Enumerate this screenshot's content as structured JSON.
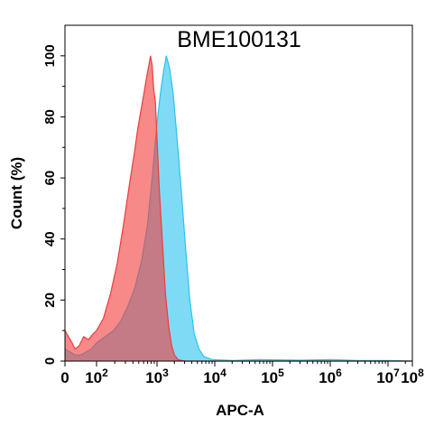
{
  "chart_data": {
    "type": "area",
    "title": "BME100131",
    "xlabel": "APC-A",
    "ylabel": "Count  (%)",
    "x_scale": "biexponential",
    "xlim": [
      0,
      100000000
    ],
    "ylim": [
      0,
      110
    ],
    "x_ticks": [
      {
        "value": 0,
        "base": "0",
        "exp": ""
      },
      {
        "value": 100,
        "base": "10",
        "exp": "2"
      },
      {
        "value": 1000,
        "base": "10",
        "exp": "3"
      },
      {
        "value": 10000,
        "base": "10",
        "exp": "4"
      },
      {
        "value": 100000,
        "base": "10",
        "exp": "5"
      },
      {
        "value": 1000000,
        "base": "10",
        "exp": "6"
      },
      {
        "value": 10000000,
        "base": "10",
        "exp": "7"
      },
      {
        "value": 100000000,
        "base": "10",
        "exp": "8"
      }
    ],
    "y_ticks": [
      "0",
      "20",
      "40",
      "60",
      "80",
      "100"
    ],
    "grid": false,
    "series": [
      {
        "color": "#29c3ee",
        "fill": "rgba(41,195,238,0.6)",
        "points": [
          [
            0,
            4
          ],
          [
            10,
            2
          ],
          [
            25,
            2
          ],
          [
            45,
            3
          ],
          [
            70,
            4
          ],
          [
            100,
            6
          ],
          [
            140,
            8
          ],
          [
            190,
            10
          ],
          [
            250,
            13
          ],
          [
            330,
            18
          ],
          [
            430,
            24
          ],
          [
            560,
            33
          ],
          [
            700,
            45
          ],
          [
            850,
            62
          ],
          [
            1000,
            78
          ],
          [
            1150,
            88
          ],
          [
            1300,
            95
          ],
          [
            1450,
            100
          ],
          [
            1650,
            96
          ],
          [
            1900,
            88
          ],
          [
            2200,
            74
          ],
          [
            2600,
            57
          ],
          [
            3100,
            38
          ],
          [
            3700,
            20
          ],
          [
            4400,
            9
          ],
          [
            5300,
            4
          ],
          [
            6500,
            1.5
          ],
          [
            9000,
            0.5
          ],
          [
            20000,
            0.2
          ],
          [
            60000,
            0.5
          ],
          [
            300000,
            0.3
          ],
          [
            1000000,
            0.5
          ],
          [
            3000000,
            0.2
          ],
          [
            10000000,
            0.2
          ],
          [
            100000000,
            0
          ]
        ]
      },
      {
        "color": "#f03c3c",
        "fill": "rgba(242,58,58,0.6)",
        "points": [
          [
            0,
            10
          ],
          [
            5,
            6
          ],
          [
            10,
            4
          ],
          [
            20,
            5
          ],
          [
            35,
            8
          ],
          [
            55,
            7
          ],
          [
            80,
            9
          ],
          [
            100,
            10
          ],
          [
            130,
            14
          ],
          [
            170,
            22
          ],
          [
            220,
            32
          ],
          [
            280,
            45
          ],
          [
            350,
            58
          ],
          [
            420,
            68
          ],
          [
            480,
            76
          ],
          [
            540,
            82
          ],
          [
            600,
            87
          ],
          [
            660,
            92
          ],
          [
            720,
            96
          ],
          [
            780,
            100
          ],
          [
            830,
            97
          ],
          [
            880,
            89
          ],
          [
            940,
            85
          ],
          [
            1000,
            73
          ],
          [
            1100,
            56
          ],
          [
            1250,
            38
          ],
          [
            1400,
            22
          ],
          [
            1600,
            11
          ],
          [
            1800,
            5
          ],
          [
            2000,
            2
          ],
          [
            2300,
            0.5
          ],
          [
            3000,
            0
          ],
          [
            100000000,
            0
          ]
        ]
      }
    ]
  }
}
